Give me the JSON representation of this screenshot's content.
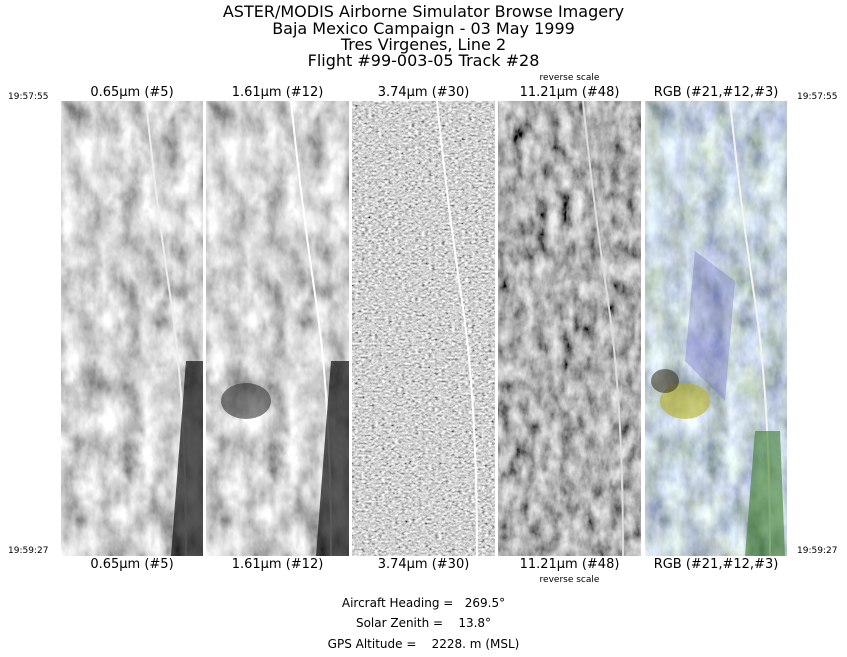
{
  "header": {
    "title_lines": [
      "ASTER/MODIS Airborne Simulator Browse Imagery",
      "Baja Mexico Campaign - 03 May 1999",
      "Tres Virgenes, Line 2",
      "Flight #99-003-05 Track #28"
    ]
  },
  "times": {
    "start": "19:57:55",
    "end": "19:59:27"
  },
  "panels": [
    {
      "label": "0.65μm (#5)",
      "note": "",
      "mode": "gray"
    },
    {
      "label": "1.61μm (#12)",
      "note": "",
      "mode": "gray"
    },
    {
      "label": "3.74μm (#30)",
      "note": "",
      "mode": "gray-noisy"
    },
    {
      "label": "11.21μm (#48)",
      "note": "reverse scale",
      "mode": "gray-dark"
    },
    {
      "label": "RGB (#21,#12,#3)",
      "note": "",
      "mode": "color"
    }
  ],
  "footer": {
    "heading": "Aircraft Heading =   269.5°",
    "zenith": "Solar Zenith =    13.8°",
    "altitude": "GPS Altitude =    2228. m (MSL)"
  }
}
